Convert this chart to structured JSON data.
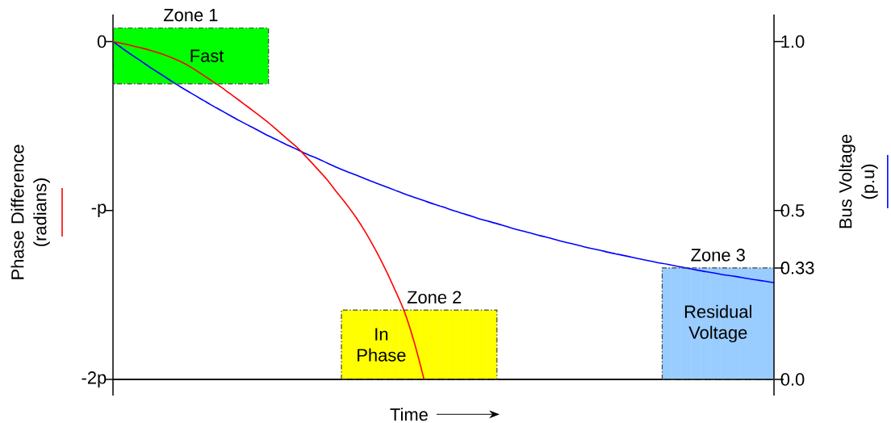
{
  "chart_data": {
    "type": "line",
    "xlabel": "Time",
    "ylabel": "Phase Difference (radians)",
    "y2label": "Bus Voltage (p.u)",
    "categories": [
      null,
      null,
      null,
      null,
      null,
      null,
      null,
      null,
      null,
      null,
      null,
      null,
      null,
      null,
      null,
      null,
      null,
      null,
      null,
      null,
      null,
      null,
      null,
      null,
      null,
      null,
      null,
      null,
      null,
      null,
      null,
      null,
      null,
      null,
      null,
      null,
      null,
      null,
      null,
      null,
      null,
      null,
      null,
      null,
      null,
      null,
      null,
      null,
      null,
      null,
      null,
      null,
      null,
      null,
      null,
      null,
      null,
      null,
      null,
      null,
      null,
      null,
      null,
      null,
      null,
      null,
      null,
      null,
      null
    ],
    "ylim": [
      -2,
      0.16
    ],
    "yticks": [
      0,
      {
        "value": -1,
        "label": "-p"
      },
      {
        "value": -2,
        "label": "-2p"
      }
    ],
    "y2lim": [
      0,
      1.08
    ],
    "y2ticks": [
      {
        "value": 0,
        "label": "0.0"
      },
      0.33,
      0.5,
      {
        "value": 1,
        "label": "1.0"
      }
    ],
    "bands": [
      {
        "axis": "y",
        "from": -0.25,
        "to": 0.08,
        "label": "Zone 1",
        "color": "#00ff00"
      }
    ],
    "series": [
      {
        "type": "bar",
        "name": "Zone 2",
        "color": "#ffff00",
        "base": [
          null,
          null,
          null,
          null,
          null,
          null,
          null,
          null,
          null,
          null,
          null,
          null,
          null,
          null,
          null,
          null,
          null,
          null,
          null,
          null,
          null,
          null,
          null,
          null,
          -2,
          -2,
          -2,
          -2,
          -2,
          -2,
          -2,
          -2,
          -2,
          -2,
          -2,
          -2,
          -2,
          -2,
          -2,
          -2,
          null,
          null,
          null,
          null,
          null,
          null,
          null,
          null,
          null,
          null,
          null,
          null,
          null,
          null,
          null,
          null,
          null,
          null,
          null,
          null,
          null,
          null,
          null,
          null,
          null,
          null,
          null,
          null,
          null
        ],
        "values": [
          null,
          null,
          null,
          null,
          null,
          null,
          null,
          null,
          null,
          null,
          null,
          null,
          null,
          null,
          null,
          null,
          null,
          null,
          null,
          null,
          null,
          null,
          null,
          null,
          0.41,
          0.41,
          0.41,
          0.41,
          0.41,
          0.41,
          0.41,
          0.41,
          0.41,
          0.41,
          0.41,
          0.41,
          0.41,
          0.41,
          0.41,
          0.41,
          null,
          null,
          null,
          null,
          null,
          null,
          null,
          null,
          null,
          null,
          null,
          null,
          null,
          null,
          null,
          null,
          null,
          null,
          null,
          null,
          null,
          null,
          null,
          null,
          null,
          null,
          null,
          null,
          null
        ]
      },
      {
        "type": "bar",
        "name": "Zone 3",
        "color": "#99ccff",
        "axis": "y2",
        "base": [
          null,
          null,
          null,
          null,
          null,
          null,
          null,
          null,
          null,
          null,
          null,
          null,
          null,
          null,
          null,
          null,
          null,
          null,
          null,
          null,
          null,
          null,
          null,
          null,
          null,
          null,
          null,
          null,
          null,
          null,
          null,
          null,
          null,
          null,
          null,
          null,
          null,
          null,
          null,
          null,
          null,
          null,
          null,
          null,
          null,
          null,
          null,
          null,
          null,
          null,
          null,
          null,
          null,
          null,
          null,
          null,
          null,
          0,
          0,
          0,
          0,
          0,
          0,
          0,
          0,
          0,
          0,
          0,
          0
        ],
        "values": [
          null,
          null,
          null,
          null,
          null,
          null,
          null,
          null,
          null,
          null,
          null,
          null,
          null,
          null,
          null,
          null,
          null,
          null,
          null,
          null,
          null,
          null,
          null,
          null,
          null,
          null,
          null,
          null,
          null,
          null,
          null,
          null,
          null,
          null,
          null,
          null,
          null,
          null,
          null,
          null,
          null,
          null,
          null,
          null,
          null,
          null,
          null,
          null,
          null,
          null,
          null,
          null,
          null,
          null,
          null,
          null,
          null,
          0.33,
          0.33,
          0.33,
          0.33,
          0.33,
          0.33,
          0.33,
          0.33,
          0.33,
          0.33,
          0.33,
          0.33
        ]
      },
      {
        "color": "#ff0000",
        "values": [
          0,
          -0.012,
          -0.025,
          -0.039,
          -0.055,
          -0.073,
          -0.094,
          -0.12,
          -0.151,
          -0.188,
          -0.226,
          -0.265,
          -0.307,
          -0.349,
          -0.392,
          -0.436,
          -0.481,
          -0.53,
          -0.58,
          -0.63,
          -0.69,
          -0.752,
          -0.816,
          -0.89,
          -0.962,
          -1.041,
          -1.131,
          -1.233,
          -1.345,
          -1.469,
          -1.602,
          -1.782,
          -2.0,
          null,
          null,
          null,
          null,
          null,
          null,
          null,
          null,
          null,
          null,
          null,
          null,
          null,
          null,
          null,
          null,
          null,
          null,
          null,
          null,
          null,
          null,
          null,
          null,
          null,
          null,
          null,
          null,
          null,
          null,
          null,
          null,
          null,
          null,
          null,
          null
        ]
      },
      {
        "color": "#0000ff",
        "axis": "y2",
        "values": [
          1.0,
          0.979,
          0.959,
          0.94,
          0.92,
          0.902,
          0.883,
          0.865,
          0.848,
          0.831,
          0.814,
          0.798,
          0.782,
          0.766,
          0.751,
          0.736,
          0.721,
          0.707,
          0.693,
          0.68,
          0.666,
          0.654,
          0.641,
          0.628,
          0.616,
          0.605,
          0.593,
          0.582,
          0.571,
          0.56,
          0.549,
          0.539,
          0.529,
          0.519,
          0.51,
          0.5,
          0.491,
          0.482,
          0.473,
          0.465,
          0.457,
          0.448,
          0.44,
          0.433,
          0.425,
          0.418,
          0.41,
          0.403,
          0.396,
          0.389,
          0.383,
          0.376,
          0.37,
          0.364,
          0.358,
          0.352,
          0.346,
          0.341,
          0.335,
          0.33,
          0.324,
          0.319,
          0.314,
          0.309,
          0.305,
          0.3,
          0.295,
          0.291,
          0.286
        ]
      }
    ],
    "annotations": [
      "Fast",
      "In Phase",
      "Residual Voltage"
    ]
  }
}
